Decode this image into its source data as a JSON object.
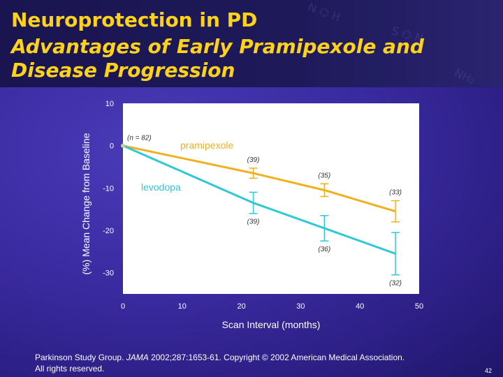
{
  "slide": {
    "title": "Neuroprotection in PD",
    "subtitle": "Advantages of Early Pramipexole and Disease Progression",
    "citation_prefix": "Parkinson Study Group. ",
    "citation_journal": "JAMA",
    "citation_rest": " 2002;287:1653-61. Copyright © 2002 American Medical Association.",
    "citation_line2": "All rights reserved.",
    "page_number": "42"
  },
  "colors": {
    "title": "#ffd21a",
    "pramipexole": "#f0b020",
    "levodopa": "#30c8d8",
    "plot_bg": "#ffffff",
    "axis_text": "#ffffff"
  },
  "chart_data": {
    "type": "line",
    "title": "",
    "xlabel": "Scan Interval (months)",
    "ylabel": "(%) Mean Change from Baseline",
    "xlim": [
      0,
      50
    ],
    "ylim": [
      -35,
      10
    ],
    "xticks": [
      0,
      10,
      20,
      30,
      40,
      50
    ],
    "yticks": [
      10,
      0,
      -10,
      -20,
      -30
    ],
    "ytick_labels": [
      "10",
      "0",
      "-10",
      "-20",
      "-30"
    ],
    "xtick_labels": [
      "0",
      "10",
      "20",
      "30",
      "40",
      "50"
    ],
    "baseline_label": "(n = 82)",
    "series": [
      {
        "name": "pramipexole",
        "color": "#f0b020",
        "x": [
          0,
          22,
          34,
          46
        ],
        "y": [
          0,
          -6.5,
          -10.5,
          -15.5
        ],
        "err": [
          0,
          1.2,
          1.5,
          2.5
        ],
        "n_labels": [
          "",
          "(39)",
          "(35)",
          "(33)"
        ],
        "label_pos": "above"
      },
      {
        "name": "levodopa",
        "color": "#30c8d8",
        "x": [
          0,
          22,
          34,
          46
        ],
        "y": [
          0,
          -13.5,
          -19.5,
          -25.5
        ],
        "err": [
          0,
          2.5,
          3.0,
          5.0
        ],
        "n_labels": [
          "",
          "(39)",
          "(36)",
          "(32)"
        ],
        "label_pos": "below"
      }
    ]
  }
}
